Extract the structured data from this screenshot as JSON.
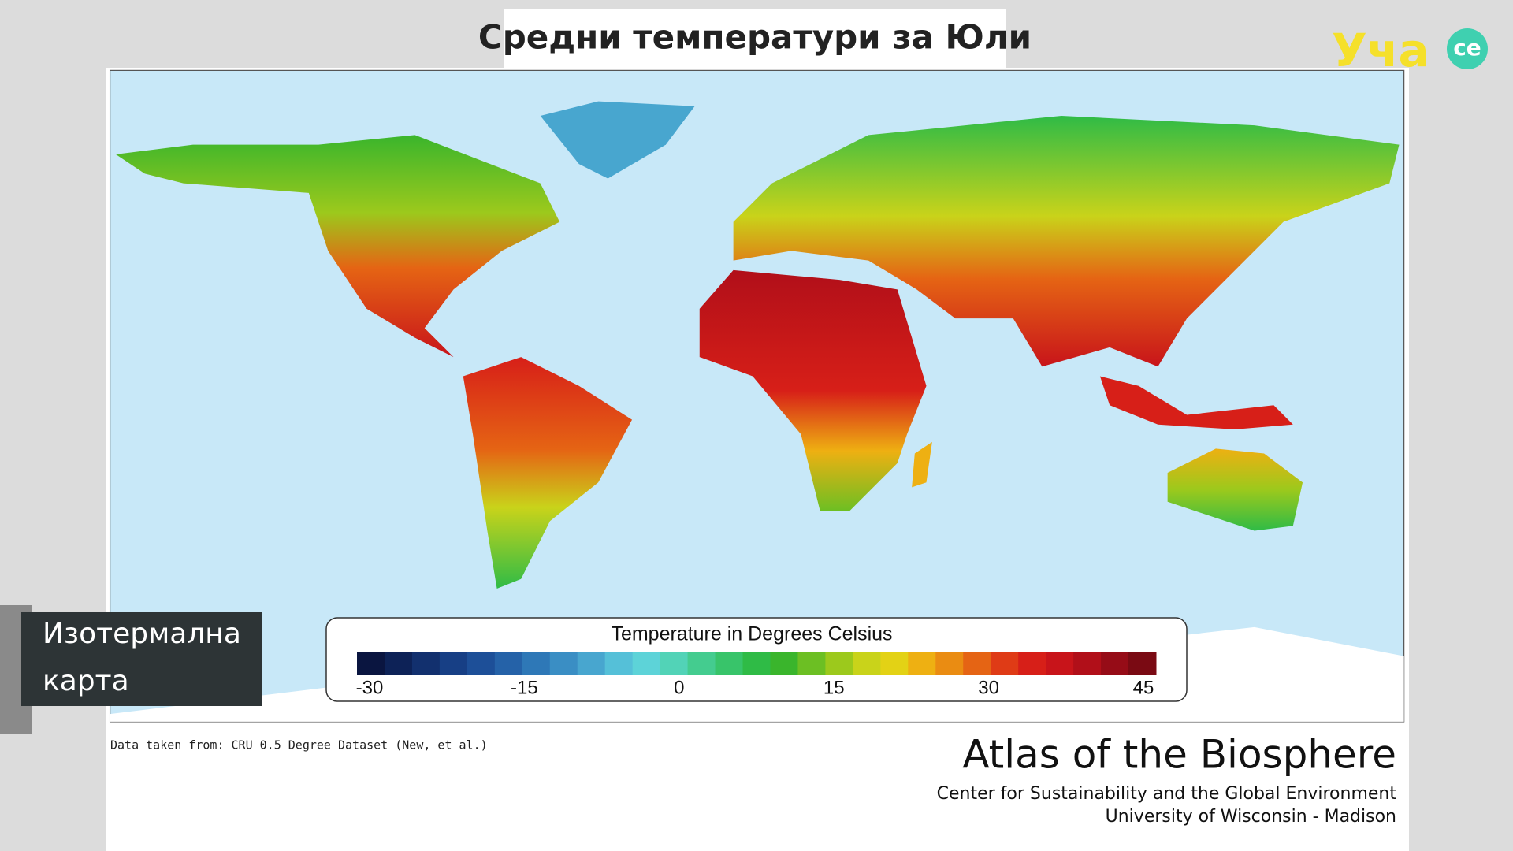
{
  "header": {
    "title": "Средни температури за Юли"
  },
  "logo": {
    "text": "Уча",
    "badge": "се"
  },
  "caption": {
    "lines": [
      "Изотермална",
      "карта"
    ]
  },
  "legend": {
    "title": "Temperature in Degrees Celsius",
    "range": [
      -30,
      45
    ],
    "ticks": [
      -30,
      -15,
      0,
      15,
      30,
      45
    ],
    "colors": [
      "#0a1540",
      "#0d2257",
      "#12306e",
      "#173f85",
      "#1d4f98",
      "#2562a8",
      "#2e78b7",
      "#3a8ec4",
      "#48a6cf",
      "#55c0d8",
      "#5dd3d8",
      "#52d3b7",
      "#44cc8f",
      "#38c46a",
      "#2fbb46",
      "#3ab52c",
      "#6cbf23",
      "#9cc91c",
      "#c9d31a",
      "#e3d215",
      "#eeb012",
      "#ea8c12",
      "#e56414",
      "#df3b16",
      "#d71f18",
      "#c8141a",
      "#b10f19",
      "#960c17",
      "#7a0a13"
    ]
  },
  "footer": {
    "source": "Data taken from: CRU 0.5 Degree Dataset (New, et al.)",
    "atlas": "Atlas of the Biosphere",
    "center": "Center for Sustainability and the Global Environment",
    "university": "University of Wisconsin - Madison"
  }
}
